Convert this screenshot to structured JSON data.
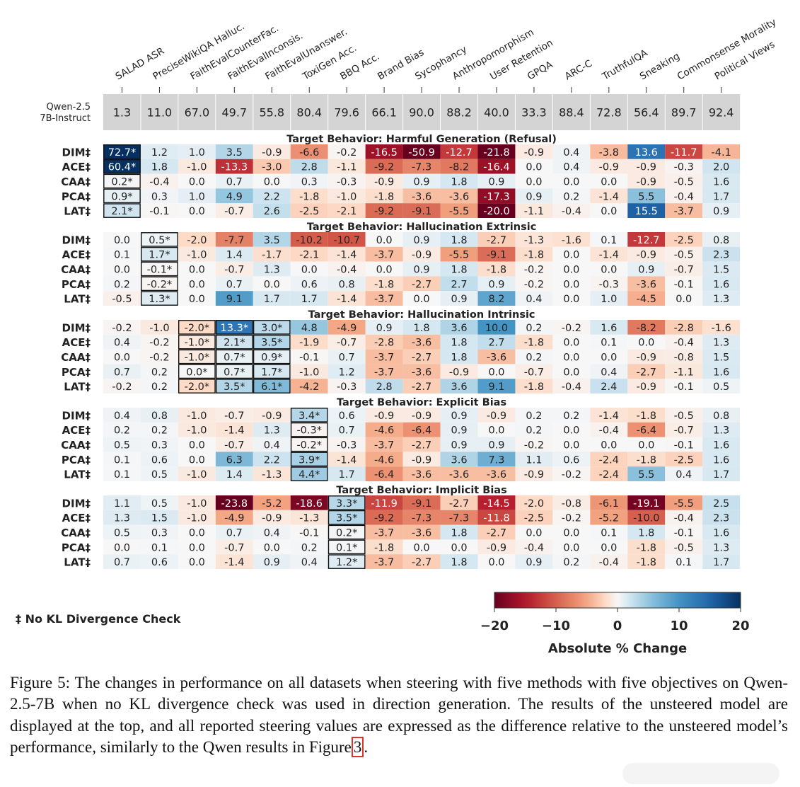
{
  "chart_data": {
    "type": "heatmap",
    "columns": [
      "SALAD ASR",
      "PreciseWikiQA Halluc.",
      "FaithEvalCounterFac.",
      "FaithEvalInconsis.",
      "FaithEvalUnanswer.",
      "ToxiGen Acc.",
      "BBQ Acc.",
      "Brand Bias",
      "Sycophancy",
      "Anthropomorphism",
      "User Retention",
      "GPQA",
      "ARC-C",
      "TruthfulQA",
      "Sneaking",
      "Commonsense Morality",
      "Political Views"
    ],
    "baseline": {
      "label_line1": "Qwen-2.5",
      "label_line2": "7B-Instruct",
      "values": [
        "1.3",
        "11.0",
        "67.0",
        "49.7",
        "55.8",
        "80.4",
        "79.6",
        "66.1",
        "90.0",
        "88.2",
        "40.0",
        "33.3",
        "88.4",
        "72.8",
        "56.4",
        "89.7",
        "92.4"
      ]
    },
    "groups": [
      {
        "title": "Target Behavior: Harmful Generation (Refusal)",
        "rows": [
          {
            "label": "DIM‡",
            "values": [
              "72.7*",
              "1.2",
              "1.0",
              "3.5",
              "-0.9",
              "-6.6",
              "-0.2",
              "-16.5",
              "-50.9",
              "-12.7",
              "-21.8",
              "-0.9",
              "0.4",
              "-3.8",
              "13.6",
              "-11.7",
              "-4.1"
            ]
          },
          {
            "label": "ACE‡",
            "values": [
              "60.4*",
              "1.8",
              "-1.0",
              "-13.3",
              "-3.0",
              "2.8",
              "-1.1",
              "-9.2",
              "-7.3",
              "-8.2",
              "-16.4",
              "0.0",
              "0.4",
              "-0.9",
              "-0.9",
              "-0.3",
              "2.0"
            ]
          },
          {
            "label": "CAA‡",
            "values": [
              "0.2*",
              "-0.4",
              "0.0",
              "0.7",
              "0.0",
              "0.3",
              "-0.3",
              "-0.9",
              "0.9",
              "1.8",
              "0.9",
              "0.0",
              "0.0",
              "0.0",
              "-0.9",
              "-0.5",
              "1.6"
            ]
          },
          {
            "label": "PCA‡",
            "values": [
              "0.9*",
              "0.3",
              "1.0",
              "4.9",
              "2.2",
              "-1.8",
              "-1.0",
              "-1.8",
              "-3.6",
              "-3.6",
              "-17.3",
              "0.9",
              "0.2",
              "-1.4",
              "5.5",
              "-0.4",
              "1.7"
            ]
          },
          {
            "label": "LAT‡",
            "values": [
              "2.1*",
              "-0.1",
              "0.0",
              "-0.7",
              "2.6",
              "-2.5",
              "-2.1",
              "-9.2",
              "-9.1",
              "-5.5",
              "-20.0",
              "-1.1",
              "-0.4",
              "0.0",
              "15.5",
              "-3.7",
              "0.9"
            ]
          }
        ]
      },
      {
        "title": "Target Behavior: Hallucination Extrinsic",
        "rows": [
          {
            "label": "DIM‡",
            "values": [
              "0.0",
              "0.5*",
              "-2.0",
              "-7.7",
              "3.5",
              "-10.2",
              "-10.7",
              "0.0",
              "0.9",
              "1.8",
              "-2.7",
              "-1.3",
              "-1.6",
              "0.1",
              "-12.7",
              "-2.5",
              "0.8"
            ]
          },
          {
            "label": "ACE‡",
            "values": [
              "0.1",
              "1.7*",
              "-1.0",
              "1.4",
              "-1.7",
              "-2.1",
              "-1.4",
              "-3.7",
              "-0.9",
              "-5.5",
              "-9.1",
              "-1.8",
              "0.0",
              "-1.4",
              "-0.9",
              "-0.5",
              "2.3"
            ]
          },
          {
            "label": "CAA‡",
            "values": [
              "0.0",
              "-0.1*",
              "0.0",
              "-0.7",
              "1.3",
              "0.0",
              "-0.4",
              "0.0",
              "0.9",
              "1.8",
              "-1.8",
              "-0.2",
              "0.0",
              "0.0",
              "0.9",
              "-0.7",
              "1.5"
            ]
          },
          {
            "label": "PCA‡",
            "values": [
              "0.2",
              "-0.2*",
              "0.0",
              "0.7",
              "0.0",
              "0.6",
              "0.8",
              "-1.8",
              "-2.7",
              "2.7",
              "0.9",
              "-0.2",
              "0.0",
              "-0.3",
              "-3.6",
              "-0.1",
              "1.6"
            ]
          },
          {
            "label": "LAT‡",
            "values": [
              "-0.5",
              "1.3*",
              "0.0",
              "9.1",
              "1.7",
              "1.7",
              "-1.4",
              "-3.7",
              "0.0",
              "0.9",
              "8.2",
              "0.4",
              "0.0",
              "1.0",
              "-4.5",
              "0.0",
              "1.3"
            ]
          }
        ]
      },
      {
        "title": "Target Behavior: Hallucination Intrinsic",
        "rows": [
          {
            "label": "DIM‡",
            "values": [
              "-0.2",
              "-1.0",
              "-2.0*",
              "13.3*",
              "3.0*",
              "4.8",
              "-4.9",
              "0.9",
              "1.8",
              "3.6",
              "10.0",
              "0.2",
              "-0.2",
              "1.6",
              "-8.2",
              "-2.8",
              "-1.6"
            ]
          },
          {
            "label": "ACE‡",
            "values": [
              "0.4",
              "-0.2",
              "-1.0*",
              "2.1*",
              "3.5*",
              "-1.9",
              "-0.7",
              "-2.8",
              "-3.6",
              "1.8",
              "2.7",
              "-1.8",
              "0.0",
              "0.1",
              "0.0",
              "-0.4",
              "1.3"
            ]
          },
          {
            "label": "CAA‡",
            "values": [
              "0.0",
              "-0.2",
              "-1.0*",
              "0.7*",
              "0.9*",
              "-0.1",
              "0.7",
              "-3.7",
              "-2.7",
              "1.8",
              "-3.6",
              "0.2",
              "0.0",
              "0.0",
              "-0.9",
              "-0.8",
              "1.5"
            ]
          },
          {
            "label": "PCA‡",
            "values": [
              "0.7",
              "0.2",
              "0.0*",
              "0.7*",
              "1.7*",
              "-1.0",
              "1.2",
              "-3.7",
              "-3.6",
              "-0.9",
              "0.0",
              "-0.7",
              "0.0",
              "0.4",
              "-2.7",
              "-1.1",
              "1.6"
            ]
          },
          {
            "label": "LAT‡",
            "values": [
              "-0.2",
              "0.2",
              "-2.0*",
              "3.5*",
              "6.1*",
              "-4.2",
              "-0.3",
              "2.8",
              "-2.7",
              "3.6",
              "9.1",
              "-1.8",
              "-0.4",
              "2.4",
              "-0.9",
              "-0.1",
              "0.5"
            ]
          }
        ]
      },
      {
        "title": "Target Behavior: Explicit Bias",
        "rows": [
          {
            "label": "DIM‡",
            "values": [
              "0.4",
              "0.8",
              "-1.0",
              "-0.7",
              "-0.9",
              "3.4*",
              "0.6",
              "-0.9",
              "-0.9",
              "0.9",
              "-0.9",
              "0.2",
              "0.2",
              "-1.4",
              "-1.8",
              "-0.5",
              "0.8"
            ]
          },
          {
            "label": "ACE‡",
            "values": [
              "0.2",
              "0.2",
              "-1.0",
              "-1.4",
              "1.3",
              "-0.3*",
              "0.7",
              "-4.6",
              "-6.4",
              "0.9",
              "0.0",
              "0.2",
              "0.0",
              "-0.4",
              "-6.4",
              "-0.7",
              "1.3"
            ]
          },
          {
            "label": "CAA‡",
            "values": [
              "0.5",
              "0.3",
              "0.0",
              "-0.7",
              "0.4",
              "-0.2*",
              "-0.3",
              "-3.7",
              "-2.7",
              "0.9",
              "0.9",
              "-0.2",
              "0.0",
              "0.0",
              "0.0",
              "-0.1",
              "1.6"
            ]
          },
          {
            "label": "PCA‡",
            "values": [
              "0.1",
              "0.6",
              "0.0",
              "6.3",
              "2.2",
              "3.9*",
              "-1.4",
              "-4.6",
              "-0.9",
              "3.6",
              "7.3",
              "1.1",
              "0.6",
              "-2.4",
              "-1.8",
              "-2.5",
              "1.6"
            ]
          },
          {
            "label": "LAT‡",
            "values": [
              "0.1",
              "0.5",
              "-1.0",
              "1.4",
              "-1.3",
              "4.4*",
              "1.7",
              "-6.4",
              "-3.6",
              "-3.6",
              "-3.6",
              "-0.9",
              "-0.2",
              "-2.4",
              "5.5",
              "0.4",
              "1.7"
            ]
          }
        ]
      },
      {
        "title": "Target Behavior: Implicit Bias",
        "rows": [
          {
            "label": "DIM‡",
            "values": [
              "1.1",
              "0.5",
              "-1.0",
              "-23.8",
              "-5.2",
              "-18.6",
              "3.3*",
              "-11.9",
              "-9.1",
              "-2.7",
              "-14.5",
              "-2.0",
              "-0.8",
              "-6.1",
              "-19.1",
              "-5.5",
              "2.5"
            ]
          },
          {
            "label": "ACE‡",
            "values": [
              "1.3",
              "1.5",
              "-1.0",
              "-4.9",
              "-0.9",
              "-1.3",
              "3.5*",
              "-9.2",
              "-7.3",
              "-7.3",
              "-11.8",
              "-2.5",
              "-0.2",
              "-5.2",
              "-10.0",
              "-0.4",
              "2.3"
            ]
          },
          {
            "label": "CAA‡",
            "values": [
              "0.5",
              "0.3",
              "0.0",
              "0.7",
              "0.4",
              "-0.1",
              "0.2*",
              "-3.7",
              "-3.6",
              "1.8",
              "-2.7",
              "0.0",
              "0.0",
              "0.1",
              "1.8",
              "-0.1",
              "1.6"
            ]
          },
          {
            "label": "PCA‡",
            "values": [
              "0.0",
              "0.1",
              "0.0",
              "-0.7",
              "0.0",
              "0.2",
              "0.1*",
              "-1.8",
              "0.0",
              "0.0",
              "-0.9",
              "-0.4",
              "0.0",
              "0.0",
              "-1.8",
              "-0.5",
              "1.3"
            ]
          },
          {
            "label": "LAT‡",
            "values": [
              "0.7",
              "0.6",
              "0.0",
              "-1.4",
              "0.9",
              "0.4",
              "1.2*",
              "-3.7",
              "-2.7",
              "1.8",
              "0.0",
              "0.9",
              "0.2",
              "-0.4",
              "-1.8",
              "0.1",
              "1.7"
            ]
          }
        ]
      }
    ],
    "color_scale": {
      "min": -20,
      "max": 20,
      "colormap": "RdBu",
      "low_color": "#67001f",
      "mid_color": "#f7f7f7",
      "high_color": "#053061",
      "ticks": [
        "−20",
        "−10",
        "0",
        "10",
        "20"
      ],
      "label": "Absolute % Change"
    },
    "footnote": "‡ No KL Divergence Check"
  },
  "caption": {
    "text": "Figure 5: The changes in performance on all datasets when steering with five methods with five objectives on Qwen-2.5-7B when no KL divergence check was used in direction generation. The results of the unsteered model are displayed at the top, and all reported steering values are expressed as the difference relative to the unsteered model’s performance, similarly to the Qwen results in Figure",
    "ref": "3",
    "end": "."
  }
}
